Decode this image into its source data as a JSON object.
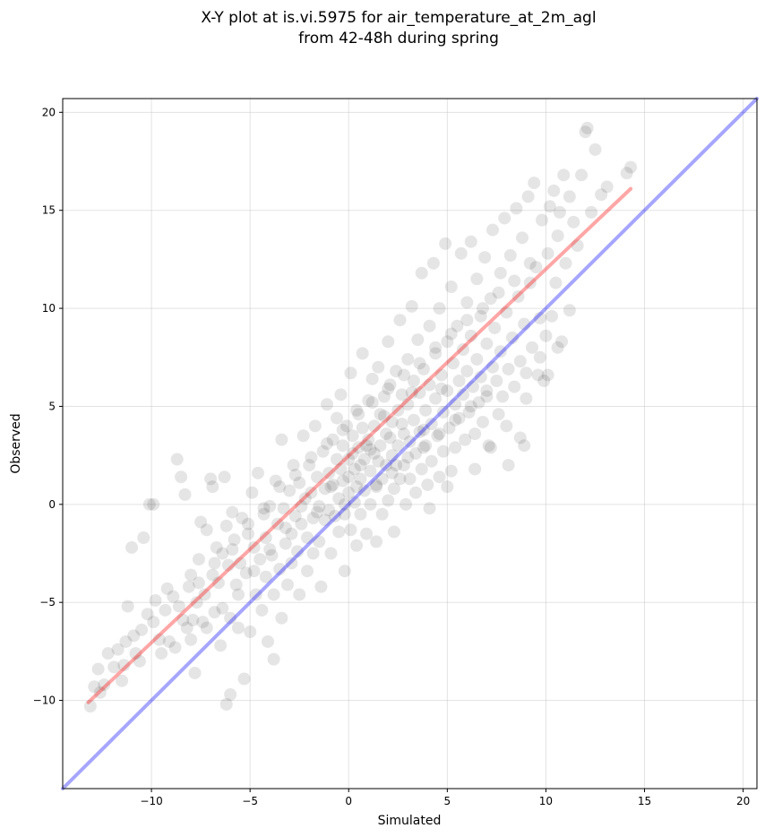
{
  "chart_data": {
    "type": "scatter",
    "title": "X-Y plot at is.vi.5975 for air_temperature_at_2m_agl",
    "subtitle": "from 42-48h during spring",
    "xlabel": "Simulated",
    "ylabel": "Observed",
    "xlim": [
      -14.5,
      20.7
    ],
    "ylim": [
      -14.5,
      20.7
    ],
    "xticks": [
      -10,
      -5,
      0,
      5,
      10,
      15,
      20
    ],
    "yticks": [
      -10,
      -5,
      0,
      5,
      10,
      15,
      20
    ],
    "xtick_labels": [
      "−10",
      "−5",
      "0",
      "5",
      "10",
      "15",
      "20"
    ],
    "ytick_labels": [
      "−10",
      "−5",
      "0",
      "5",
      "10",
      "15",
      "20"
    ],
    "grid": true,
    "point_color": "#000000",
    "point_opacity": 0.1,
    "identity_line": {
      "x": [
        -14.5,
        20.7
      ],
      "y": [
        -14.5,
        20.7
      ],
      "color": "#0000ff"
    },
    "fit_line": {
      "x": [
        -13.2,
        14.3
      ],
      "y": [
        -10.1,
        16.1
      ],
      "color": "#ff0000"
    },
    "points": [
      [
        -13.1,
        -10.3
      ],
      [
        -12.9,
        -9.3
      ],
      [
        -12.7,
        -8.4
      ],
      [
        -12.4,
        -9.2
      ],
      [
        -12.2,
        -7.6
      ],
      [
        -11.9,
        -8.3
      ],
      [
        -11.7,
        -7.4
      ],
      [
        -11.5,
        -9.0
      ],
      [
        -11.3,
        -7.0
      ],
      [
        -11.2,
        -5.2
      ],
      [
        -11.0,
        -2.2
      ],
      [
        -10.8,
        -7.6
      ],
      [
        -10.6,
        -8.0
      ],
      [
        -10.5,
        -6.4
      ],
      [
        -10.4,
        -1.7
      ],
      [
        -10.2,
        -5.6
      ],
      [
        -10.1,
        0.0
      ],
      [
        -9.9,
        0.0
      ],
      [
        -9.8,
        -4.9
      ],
      [
        -9.6,
        -6.9
      ],
      [
        -9.5,
        -7.6
      ],
      [
        -9.3,
        -5.4
      ],
      [
        -9.1,
        -7.0
      ],
      [
        -8.9,
        -4.7
      ],
      [
        -8.7,
        2.3
      ],
      [
        -8.6,
        -5.2
      ],
      [
        -8.5,
        1.4
      ],
      [
        -8.3,
        0.5
      ],
      [
        -8.2,
        -6.3
      ],
      [
        -8.1,
        -4.2
      ],
      [
        -8.0,
        -3.6
      ],
      [
        -7.9,
        -5.9
      ],
      [
        -7.8,
        -8.6
      ],
      [
        -7.7,
        -5.0
      ],
      [
        -7.6,
        -2.8
      ],
      [
        -7.5,
        -0.9
      ],
      [
        -7.4,
        -6.0
      ],
      [
        -7.3,
        -4.6
      ],
      [
        -7.2,
        -1.3
      ],
      [
        -7.0,
        1.3
      ],
      [
        -6.9,
        0.9
      ],
      [
        -6.9,
        -3.6
      ],
      [
        -6.8,
        -5.5
      ],
      [
        -6.7,
        -2.2
      ],
      [
        -6.6,
        -4.0
      ],
      [
        -6.5,
        -7.2
      ],
      [
        -6.4,
        -2.5
      ],
      [
        -6.3,
        1.4
      ],
      [
        -6.2,
        -1.1
      ],
      [
        -6.2,
        -10.2
      ],
      [
        -6.1,
        -3.1
      ],
      [
        -6.0,
        -9.7
      ],
      [
        -6.0,
        -5.8
      ],
      [
        -5.9,
        -0.4
      ],
      [
        -5.8,
        -1.8
      ],
      [
        -5.7,
        -4.1
      ],
      [
        -5.6,
        -6.3
      ],
      [
        -5.5,
        -3.0
      ],
      [
        -5.4,
        -0.7
      ],
      [
        -5.3,
        -8.9
      ],
      [
        -5.2,
        -3.5
      ],
      [
        -5.1,
        -1.5
      ],
      [
        -5.0,
        -6.5
      ],
      [
        -4.9,
        0.6
      ],
      [
        -4.8,
        -2.2
      ],
      [
        -4.7,
        -4.6
      ],
      [
        -4.6,
        1.6
      ],
      [
        -4.5,
        -2.8
      ],
      [
        -4.4,
        -5.4
      ],
      [
        -4.3,
        -0.5
      ],
      [
        -4.2,
        -1.7
      ],
      [
        -4.2,
        -3.7
      ],
      [
        -4.1,
        -7.0
      ],
      [
        -4.0,
        -0.1
      ],
      [
        -3.9,
        -2.6
      ],
      [
        -3.8,
        -4.6
      ],
      [
        -3.8,
        -7.9
      ],
      [
        -3.7,
        1.2
      ],
      [
        -3.6,
        -1.0
      ],
      [
        -3.5,
        -3.3
      ],
      [
        -3.4,
        -5.8
      ],
      [
        -3.4,
        3.3
      ],
      [
        -3.3,
        -0.2
      ],
      [
        -3.2,
        -2.0
      ],
      [
        -3.1,
        -4.1
      ],
      [
        -3.0,
        0.7
      ],
      [
        -2.9,
        -1.5
      ],
      [
        -2.9,
        -3.0
      ],
      [
        -2.8,
        2.0
      ],
      [
        -2.7,
        -0.6
      ],
      [
        -2.6,
        -2.4
      ],
      [
        -2.5,
        -4.6
      ],
      [
        -2.5,
        1.1
      ],
      [
        -2.4,
        -1.0
      ],
      [
        -2.3,
        3.5
      ],
      [
        -2.2,
        0.3
      ],
      [
        -2.1,
        -1.7
      ],
      [
        -2.1,
        -3.4
      ],
      [
        -2.0,
        2.0
      ],
      [
        -1.9,
        0.6
      ],
      [
        -1.8,
        -0.7
      ],
      [
        -1.8,
        -2.5
      ],
      [
        -1.7,
        4.0
      ],
      [
        -1.6,
        1.4
      ],
      [
        -1.5,
        -0.1
      ],
      [
        -1.5,
        -1.9
      ],
      [
        -1.4,
        -4.2
      ],
      [
        -1.3,
        2.7
      ],
      [
        -1.2,
        0.8
      ],
      [
        -1.2,
        -0.8
      ],
      [
        -1.1,
        5.1
      ],
      [
        -1.0,
        1.6
      ],
      [
        -1.0,
        -0.3
      ],
      [
        -0.9,
        -2.5
      ],
      [
        -0.8,
        3.3
      ],
      [
        -0.8,
        1.0
      ],
      [
        -0.7,
        -0.6
      ],
      [
        -0.6,
        4.4
      ],
      [
        -0.6,
        2.3
      ],
      [
        -0.5,
        0.3
      ],
      [
        -0.5,
        -1.4
      ],
      [
        -0.4,
        5.6
      ],
      [
        -0.3,
        3.0
      ],
      [
        -0.3,
        1.2
      ],
      [
        -0.2,
        -0.5
      ],
      [
        -0.2,
        -3.4
      ],
      [
        -0.1,
        4.0
      ],
      [
        0.0,
        2.3
      ],
      [
        0.0,
        0.6
      ],
      [
        0.1,
        -1.3
      ],
      [
        0.1,
        6.7
      ],
      [
        0.2,
        3.5
      ],
      [
        0.3,
        1.8
      ],
      [
        0.3,
        0.1
      ],
      [
        0.4,
        -2.1
      ],
      [
        0.4,
        4.8
      ],
      [
        0.5,
        2.9
      ],
      [
        0.6,
        1.3
      ],
      [
        0.6,
        -0.5
      ],
      [
        0.7,
        7.7
      ],
      [
        0.7,
        3.9
      ],
      [
        0.8,
        2.3
      ],
      [
        0.8,
        0.7
      ],
      [
        0.9,
        -1.5
      ],
      [
        1.0,
        5.3
      ],
      [
        1.0,
        3.3
      ],
      [
        1.1,
        1.7
      ],
      [
        1.1,
        0.0
      ],
      [
        1.2,
        6.4
      ],
      [
        1.3,
        4.0
      ],
      [
        1.3,
        2.6
      ],
      [
        1.4,
        0.9
      ],
      [
        1.4,
        -1.9
      ],
      [
        1.5,
        7.0
      ],
      [
        1.6,
        4.6
      ],
      [
        1.6,
        3.0
      ],
      [
        1.7,
        1.3
      ],
      [
        1.7,
        -0.5
      ],
      [
        1.8,
        5.5
      ],
      [
        1.9,
        3.6
      ],
      [
        1.9,
        2.0
      ],
      [
        2.0,
        0.2
      ],
      [
        2.0,
        8.3
      ],
      [
        2.1,
        6.1
      ],
      [
        2.2,
        4.2
      ],
      [
        2.2,
        2.5
      ],
      [
        2.3,
        0.8
      ],
      [
        2.3,
        -1.4
      ],
      [
        2.4,
        6.8
      ],
      [
        2.5,
        4.8
      ],
      [
        2.5,
        3.0
      ],
      [
        2.6,
        1.3
      ],
      [
        2.6,
        9.4
      ],
      [
        2.7,
        5.6
      ],
      [
        2.8,
        3.6
      ],
      [
        2.8,
        2.0
      ],
      [
        2.9,
        0.0
      ],
      [
        3.0,
        7.4
      ],
      [
        3.0,
        5.1
      ],
      [
        3.1,
        3.2
      ],
      [
        3.1,
        1.3
      ],
      [
        3.2,
        10.1
      ],
      [
        3.3,
        6.3
      ],
      [
        3.3,
        4.3
      ],
      [
        3.4,
        2.6
      ],
      [
        3.4,
        0.6
      ],
      [
        3.5,
        8.4
      ],
      [
        3.6,
        5.7
      ],
      [
        3.6,
        3.7
      ],
      [
        3.7,
        1.8
      ],
      [
        3.7,
        11.8
      ],
      [
        3.8,
        6.9
      ],
      [
        3.9,
        4.8
      ],
      [
        3.9,
        3.0
      ],
      [
        4.0,
        1.0
      ],
      [
        4.1,
        9.1
      ],
      [
        4.1,
        6.1
      ],
      [
        4.2,
        4.1
      ],
      [
        4.2,
        2.2
      ],
      [
        4.3,
        12.3
      ],
      [
        4.4,
        7.7
      ],
      [
        4.4,
        5.4
      ],
      [
        4.5,
        3.5
      ],
      [
        4.6,
        1.4
      ],
      [
        4.6,
        10.0
      ],
      [
        4.7,
        6.6
      ],
      [
        4.8,
        4.7
      ],
      [
        4.8,
        2.7
      ],
      [
        4.9,
        13.3
      ],
      [
        5.0,
        8.3
      ],
      [
        5.0,
        5.8
      ],
      [
        5.1,
        3.9
      ],
      [
        5.2,
        1.7
      ],
      [
        5.2,
        11.1
      ],
      [
        5.3,
        7.2
      ],
      [
        5.4,
        5.1
      ],
      [
        5.4,
        2.9
      ],
      [
        5.5,
        9.1
      ],
      [
        5.6,
        6.3
      ],
      [
        5.6,
        4.4
      ],
      [
        5.7,
        12.8
      ],
      [
        5.8,
        7.9
      ],
      [
        5.8,
        5.6
      ],
      [
        5.9,
        3.3
      ],
      [
        6.0,
        10.3
      ],
      [
        6.0,
        6.8
      ],
      [
        6.1,
        4.7
      ],
      [
        6.2,
        13.4
      ],
      [
        6.2,
        8.6
      ],
      [
        6.3,
        6.0
      ],
      [
        6.4,
        3.6
      ],
      [
        6.5,
        11.5
      ],
      [
        6.5,
        7.4
      ],
      [
        6.6,
        5.2
      ],
      [
        6.7,
        9.6
      ],
      [
        6.7,
        6.5
      ],
      [
        6.8,
        4.2
      ],
      [
        6.9,
        12.6
      ],
      [
        7.0,
        8.2
      ],
      [
        7.0,
        5.8
      ],
      [
        7.1,
        3.0
      ],
      [
        7.2,
        10.5
      ],
      [
        7.3,
        7.0
      ],
      [
        7.3,
        14.0
      ],
      [
        7.4,
        9.0
      ],
      [
        7.5,
        6.3
      ],
      [
        7.6,
        4.6
      ],
      [
        7.7,
        11.8
      ],
      [
        7.7,
        7.8
      ],
      [
        7.8,
        5.5
      ],
      [
        7.9,
        14.6
      ],
      [
        8.0,
        9.8
      ],
      [
        8.1,
        6.9
      ],
      [
        8.1,
        2.0
      ],
      [
        8.2,
        12.7
      ],
      [
        8.3,
        8.5
      ],
      [
        8.4,
        6.0
      ],
      [
        8.5,
        15.1
      ],
      [
        8.6,
        10.6
      ],
      [
        8.7,
        7.3
      ],
      [
        8.7,
        3.4
      ],
      [
        8.8,
        13.6
      ],
      [
        8.9,
        9.2
      ],
      [
        9.0,
        6.7
      ],
      [
        9.1,
        15.7
      ],
      [
        9.2,
        11.3
      ],
      [
        9.3,
        8.0
      ],
      [
        9.4,
        16.4
      ],
      [
        9.5,
        12.1
      ],
      [
        9.6,
        6.6
      ],
      [
        9.7,
        9.5
      ],
      [
        9.8,
        14.5
      ],
      [
        9.9,
        6.3
      ],
      [
        10.0,
        8.6
      ],
      [
        10.1,
        12.8
      ],
      [
        10.2,
        15.2
      ],
      [
        10.3,
        9.6
      ],
      [
        10.4,
        16.0
      ],
      [
        10.5,
        11.3
      ],
      [
        10.6,
        13.7
      ],
      [
        10.7,
        14.9
      ],
      [
        10.8,
        8.3
      ],
      [
        10.9,
        16.8
      ],
      [
        11.0,
        12.3
      ],
      [
        11.2,
        15.7
      ],
      [
        11.4,
        14.4
      ],
      [
        11.6,
        13.2
      ],
      [
        11.8,
        16.8
      ],
      [
        12.0,
        19.0
      ],
      [
        12.1,
        19.2
      ],
      [
        12.3,
        14.9
      ],
      [
        12.5,
        18.1
      ],
      [
        12.8,
        15.8
      ],
      [
        13.1,
        16.2
      ],
      [
        14.1,
        16.9
      ],
      [
        14.3,
        17.2
      ],
      [
        -12.6,
        -9.6
      ],
      [
        -11.4,
        -8.2
      ],
      [
        -10.9,
        -6.7
      ],
      [
        -9.9,
        -6.0
      ],
      [
        -9.2,
        -4.3
      ],
      [
        -8.4,
        -5.9
      ],
      [
        -7.6,
        -4.0
      ],
      [
        -6.8,
        -3.0
      ],
      [
        -5.9,
        -2.3
      ],
      [
        -5.1,
        -1.0
      ],
      [
        -4.3,
        -0.2
      ],
      [
        -3.5,
        0.9
      ],
      [
        -2.7,
        1.5
      ],
      [
        -1.9,
        2.4
      ],
      [
        -1.1,
        3.1
      ],
      [
        -0.3,
        3.8
      ],
      [
        0.5,
        4.6
      ],
      [
        1.2,
        5.2
      ],
      [
        2.0,
        5.9
      ],
      [
        2.8,
        6.6
      ],
      [
        3.6,
        7.2
      ],
      [
        4.4,
        8.0
      ],
      [
        5.2,
        8.7
      ],
      [
        6.0,
        9.4
      ],
      [
        6.8,
        10.0
      ],
      [
        7.6,
        10.8
      ],
      [
        8.4,
        11.4
      ],
      [
        9.2,
        12.3
      ],
      [
        -0.4,
        1.8
      ],
      [
        0.2,
        2.6
      ],
      [
        0.9,
        3.0
      ],
      [
        1.5,
        2.2
      ],
      [
        2.1,
        3.4
      ],
      [
        0.6,
        2.0
      ],
      [
        -0.9,
        0.9
      ],
      [
        1.8,
        4.5
      ],
      [
        2.7,
        4.1
      ],
      [
        3.2,
        5.7
      ],
      [
        -1.6,
        -0.4
      ],
      [
        0.0,
        1.4
      ],
      [
        1.1,
        2.8
      ],
      [
        2.4,
        2.0
      ],
      [
        3.8,
        3.8
      ],
      [
        4.7,
        5.9
      ],
      [
        -2.4,
        -0.1
      ],
      [
        -3.2,
        -1.2
      ],
      [
        -4.0,
        -2.3
      ],
      [
        -4.8,
        -3.4
      ],
      [
        -5.6,
        -4.6
      ],
      [
        -6.4,
        -5.3
      ],
      [
        -7.2,
        -6.3
      ],
      [
        -8.0,
        -6.9
      ],
      [
        -8.8,
        -7.3
      ],
      [
        -0.2,
        0.0
      ],
      [
        0.4,
        0.9
      ],
      [
        1.4,
        1.0
      ],
      [
        2.2,
        1.6
      ],
      [
        3.0,
        2.4
      ],
      [
        3.8,
        2.9
      ],
      [
        4.6,
        3.6
      ],
      [
        5.4,
        4.3
      ],
      [
        6.2,
        5.0
      ],
      [
        7.0,
        5.5
      ],
      [
        5.0,
        0.9
      ],
      [
        6.4,
        1.8
      ],
      [
        7.2,
        2.9
      ],
      [
        8.0,
        4.0
      ],
      [
        9.0,
        5.4
      ],
      [
        10.1,
        6.6
      ],
      [
        10.6,
        8.0
      ],
      [
        11.2,
        9.9
      ],
      [
        8.9,
        3.0
      ],
      [
        9.7,
        7.5
      ],
      [
        4.1,
        -0.2
      ]
    ]
  }
}
